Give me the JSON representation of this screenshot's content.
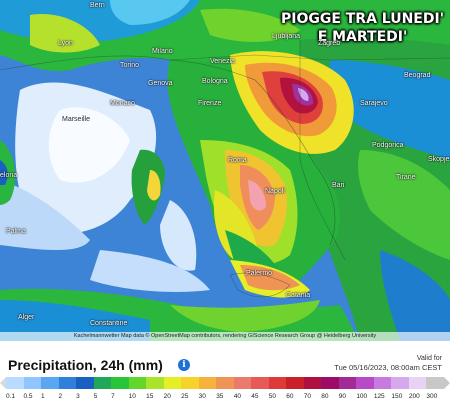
{
  "headline": {
    "line1": "PIOGGE TRA LUNEDI'",
    "line2": "E MARTEDI'"
  },
  "cities": [
    {
      "name": "Bern"
    },
    {
      "name": "Ljubljana"
    },
    {
      "name": "Zagreb"
    },
    {
      "name": "Lyon"
    },
    {
      "name": "Torino"
    },
    {
      "name": "Milano"
    },
    {
      "name": "Venezia"
    },
    {
      "name": "Genova"
    },
    {
      "name": "Bologna"
    },
    {
      "name": "Monaco"
    },
    {
      "name": "Firenze"
    },
    {
      "name": "Marseille"
    },
    {
      "name": "Beograd"
    },
    {
      "name": "Sarajevo"
    },
    {
      "name": "Podgorica"
    },
    {
      "name": "Skopje"
    },
    {
      "name": "Tirane"
    },
    {
      "name": "Roma"
    },
    {
      "name": "Napoli"
    },
    {
      "name": "Bari"
    },
    {
      "name": "Palma"
    },
    {
      "name": "Palermo"
    },
    {
      "name": "Catania"
    },
    {
      "name": "Alger"
    },
    {
      "name": "Constantine"
    },
    {
      "name": "elona"
    }
  ],
  "attribution": "Kachelmannwetter Map data © OpenStreetMap contributors, rendering GIScience Research Group @ Heidelberg University",
  "legend": {
    "title": "Precipitation, 24h (mm)",
    "valid_label": "Valid for",
    "valid_time": "Tue 05/16/2023, 08:00am CEST",
    "scale": [
      {
        "label": "0.1",
        "color": "#b7dcff"
      },
      {
        "label": "0.5",
        "color": "#8fc6ff"
      },
      {
        "label": "1",
        "color": "#5aa6f0"
      },
      {
        "label": "2",
        "color": "#2f7fdc"
      },
      {
        "label": "3",
        "color": "#1a5fc2"
      },
      {
        "label": "5",
        "color": "#1fa85a"
      },
      {
        "label": "7",
        "color": "#28c43a"
      },
      {
        "label": "10",
        "color": "#62d62a"
      },
      {
        "label": "15",
        "color": "#a8e52a"
      },
      {
        "label": "20",
        "color": "#e6ee26"
      },
      {
        "label": "25",
        "color": "#f7d22a"
      },
      {
        "label": "30",
        "color": "#f6b23a"
      },
      {
        "label": "35",
        "color": "#f09456"
      },
      {
        "label": "40",
        "color": "#ec7a6a"
      },
      {
        "label": "45",
        "color": "#e85a5a"
      },
      {
        "label": "50",
        "color": "#de3a3a"
      },
      {
        "label": "60",
        "color": "#c9202c"
      },
      {
        "label": "70",
        "color": "#b01040"
      },
      {
        "label": "80",
        "color": "#9c0c66"
      },
      {
        "label": "90",
        "color": "#a32a96"
      },
      {
        "label": "100",
        "color": "#b84ac8"
      },
      {
        "label": "125",
        "color": "#c77ae0"
      },
      {
        "label": "150",
        "color": "#d7a8ee"
      },
      {
        "label": "200",
        "color": "#e8d2f6"
      },
      {
        "label": "300",
        "color": "#c8c8c8"
      }
    ]
  },
  "info_icon": {
    "glyph": "i"
  }
}
